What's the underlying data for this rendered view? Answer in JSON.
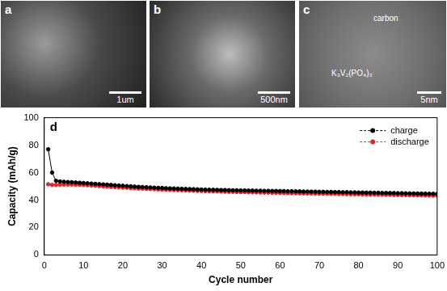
{
  "chart_data": {
    "type": "line",
    "panel_label": "d",
    "x_label": "Cycle number",
    "y_label": "Capacity (mAh/g)",
    "x": [
      1,
      2,
      3,
      4,
      5,
      6,
      7,
      8,
      9,
      10,
      11,
      12,
      13,
      14,
      15,
      16,
      17,
      18,
      19,
      20,
      21,
      22,
      23,
      24,
      25,
      26,
      27,
      28,
      29,
      30,
      31,
      32,
      33,
      34,
      35,
      36,
      37,
      38,
      39,
      40,
      41,
      42,
      43,
      44,
      45,
      46,
      47,
      48,
      49,
      50,
      51,
      52,
      53,
      54,
      55,
      56,
      57,
      58,
      59,
      60,
      61,
      62,
      63,
      64,
      65,
      66,
      67,
      68,
      69,
      70,
      71,
      72,
      73,
      74,
      75,
      76,
      77,
      78,
      79,
      80,
      81,
      82,
      83,
      84,
      85,
      86,
      87,
      88,
      89,
      90,
      91,
      92,
      93,
      94,
      95,
      96,
      97,
      98,
      99,
      100
    ],
    "series": [
      {
        "name": "charge",
        "color": "#000000",
        "marker": "circle",
        "values": [
          77,
          60,
          54,
          53.5,
          53.3,
          53.1,
          53.0,
          52.8,
          52.6,
          52.4,
          52.2,
          52.0,
          51.8,
          51.6,
          51.4,
          51.2,
          51.0,
          50.8,
          50.6,
          50.4,
          50.2,
          50.0,
          49.8,
          49.6,
          49.5,
          49.3,
          49.2,
          49.0,
          48.9,
          48.8,
          48.6,
          48.5,
          48.4,
          48.3,
          48.2,
          48.1,
          48.0,
          47.9,
          47.8,
          47.7,
          47.6,
          47.5,
          47.5,
          47.4,
          47.3,
          47.3,
          47.2,
          47.1,
          47.1,
          47.0,
          47.0,
          46.9,
          46.9,
          46.8,
          46.8,
          46.7,
          46.7,
          46.6,
          46.6,
          46.5,
          46.5,
          46.4,
          46.4,
          46.3,
          46.3,
          46.2,
          46.2,
          46.1,
          46.1,
          46.0,
          46.0,
          45.9,
          45.9,
          45.8,
          45.8,
          45.7,
          45.7,
          45.6,
          45.6,
          45.5,
          45.5,
          45.4,
          45.4,
          45.3,
          45.3,
          45.2,
          45.2,
          45.1,
          45.1,
          45.0,
          45.0,
          44.9,
          44.9,
          44.8,
          44.8,
          44.7,
          44.7,
          44.6,
          44.6,
          44.5
        ]
      },
      {
        "name": "discharge",
        "color": "#e8232a",
        "marker": "circle",
        "values": [
          51.5,
          51.0,
          51.0,
          51.2,
          51.3,
          51.3,
          51.3,
          51.2,
          51.1,
          51.0,
          50.8,
          50.6,
          50.4,
          50.2,
          50.0,
          49.8,
          49.6,
          49.4,
          49.2,
          49.0,
          48.9,
          48.7,
          48.6,
          48.4,
          48.3,
          48.1,
          48.0,
          47.9,
          47.7,
          47.6,
          47.5,
          47.4,
          47.3,
          47.2,
          47.1,
          47.0,
          46.9,
          46.8,
          46.7,
          46.6,
          46.5,
          46.4,
          46.3,
          46.3,
          46.2,
          46.1,
          46.0,
          46.0,
          45.9,
          45.8,
          45.8,
          45.7,
          45.6,
          45.6,
          45.5,
          45.4,
          45.4,
          45.3,
          45.3,
          45.2,
          45.1,
          45.1,
          45.0,
          45.0,
          44.9,
          44.9,
          44.8,
          44.8,
          44.7,
          44.7,
          44.6,
          44.6,
          44.5,
          44.5,
          44.4,
          44.4,
          44.3,
          44.3,
          44.2,
          44.2,
          44.1,
          44.1,
          44.0,
          44.0,
          43.9,
          43.9,
          43.8,
          43.8,
          43.7,
          43.7,
          43.6,
          43.6,
          43.5,
          43.5,
          43.4,
          43.4,
          43.3,
          43.3,
          43.2,
          43.2
        ]
      }
    ],
    "xlim": [
      0,
      100
    ],
    "xticks": [
      0,
      10,
      20,
      30,
      40,
      50,
      60,
      70,
      80,
      90,
      100
    ],
    "ylim": [
      0,
      100
    ],
    "yticks": [
      0,
      20,
      40,
      60,
      80,
      100
    ],
    "grid": false,
    "legend": "upper right"
  },
  "image_panels": [
    {
      "label": "a",
      "scale_bar": "1um"
    },
    {
      "label": "b",
      "scale_bar": "500nm"
    },
    {
      "label": "c",
      "scale_bar": "5nm",
      "annotations": [
        "carbon",
        "K₃V₂(PO₄)₃"
      ]
    }
  ]
}
